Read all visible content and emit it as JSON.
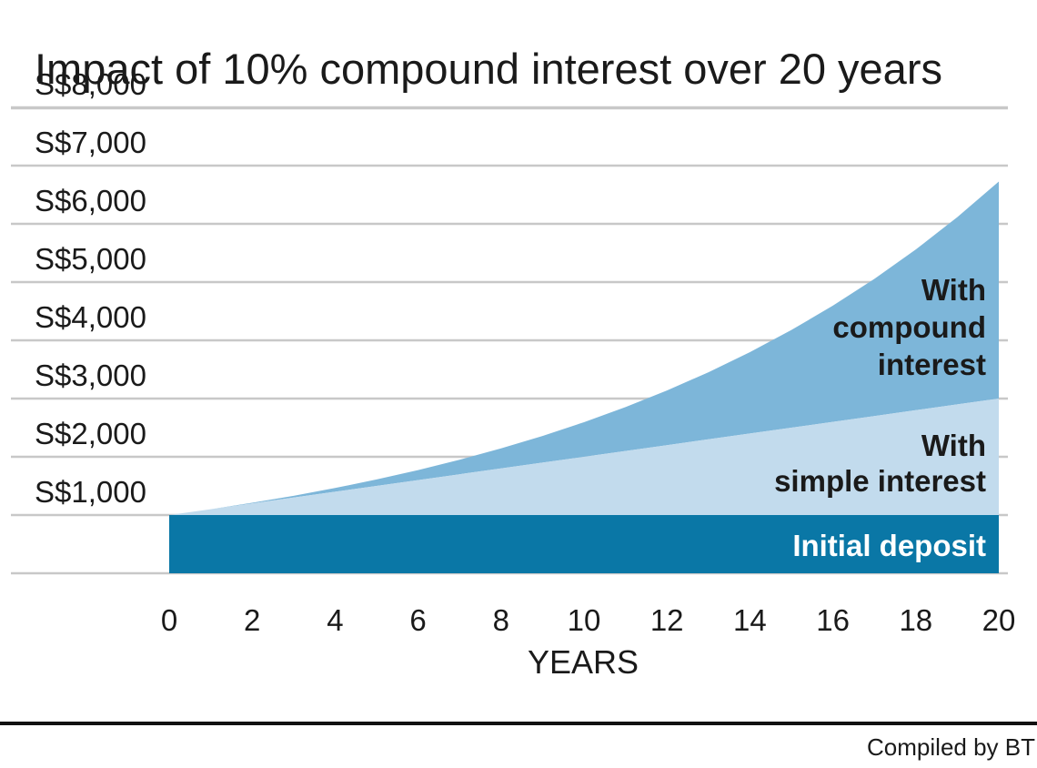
{
  "chart_data": {
    "type": "area",
    "title": "Impact of 10% compound interest over 20 years",
    "xlabel": "YEARS",
    "ylabel": "",
    "xlim": [
      0,
      20
    ],
    "ylim": [
      0,
      8000
    ],
    "x_ticks": [
      0,
      2,
      4,
      6,
      8,
      10,
      12,
      14,
      16,
      18,
      20
    ],
    "x_tick_labels": [
      "0",
      "2",
      "4",
      "6",
      "8",
      "10",
      "12",
      "14",
      "16",
      "18",
      "20"
    ],
    "y_ticks": [
      1000,
      2000,
      3000,
      4000,
      5000,
      6000,
      7000,
      8000
    ],
    "y_tick_labels": [
      "S$1,000",
      "S$2,000",
      "S$3,000",
      "S$4,000",
      "S$5,000",
      "S$6,000",
      "S$7,000",
      "S$8,000"
    ],
    "grid": true,
    "x": [
      0,
      1,
      2,
      3,
      4,
      5,
      6,
      7,
      8,
      9,
      10,
      11,
      12,
      13,
      14,
      15,
      16,
      17,
      18,
      19,
      20
    ],
    "series": [
      {
        "name": "Initial deposit",
        "color": "#0a77a6",
        "values": [
          1000,
          1000,
          1000,
          1000,
          1000,
          1000,
          1000,
          1000,
          1000,
          1000,
          1000,
          1000,
          1000,
          1000,
          1000,
          1000,
          1000,
          1000,
          1000,
          1000,
          1000
        ]
      },
      {
        "name": "With simple interest",
        "color": "#c2dbed",
        "values": [
          1000,
          1100,
          1200,
          1300,
          1400,
          1500,
          1600,
          1700,
          1800,
          1900,
          2000,
          2100,
          2200,
          2300,
          2400,
          2500,
          2600,
          2700,
          2800,
          2900,
          3000
        ]
      },
      {
        "name": "With compound interest",
        "color": "#7db6d9",
        "values": [
          1000,
          1100,
          1210,
          1331,
          1464,
          1611,
          1772,
          1949,
          2144,
          2358,
          2594,
          2853,
          3138,
          3452,
          3797,
          4177,
          4595,
          5054,
          5560,
          6116,
          6727
        ]
      }
    ],
    "area_labels": {
      "compound": [
        "With",
        "compound",
        "interest"
      ],
      "simple": [
        "With",
        "simple interest"
      ],
      "initial": [
        "Initial deposit"
      ]
    },
    "colors": {
      "grid": "#c8c8c8",
      "text": "#1a1a1a",
      "rule": "#111111"
    }
  },
  "footer": {
    "credit": "Compiled by BT"
  }
}
